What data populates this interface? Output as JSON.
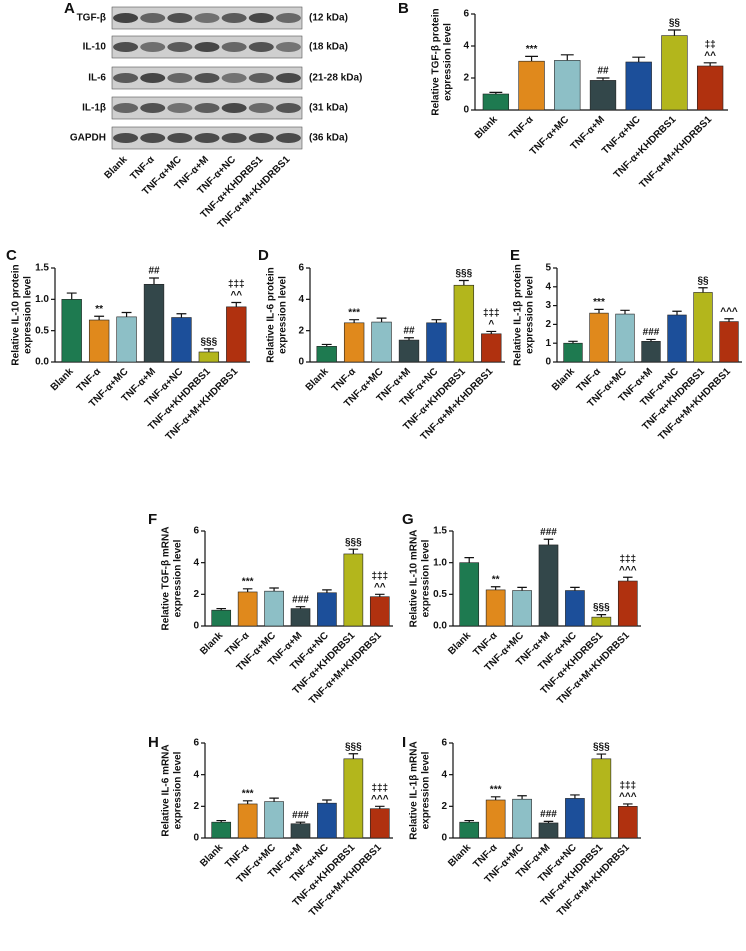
{
  "blot": {
    "panel_label": "A",
    "proteins": [
      {
        "name": "TGF-β",
        "size": "(12 kDa)"
      },
      {
        "name": "IL-10",
        "size": "(18 kDa)"
      },
      {
        "name": "IL-6",
        "size": "(21-28 kDa)"
      },
      {
        "name": "IL-1β",
        "size": "(31 kDa)"
      },
      {
        "name": "GAPDH",
        "size": "(36 kDa)"
      }
    ],
    "lanes": [
      "Blank",
      "TNF-α",
      "TNF-α+MC",
      "TNF-α+M",
      "TNF-α+NC",
      "TNF-α+KHDRBS1",
      "TNF-α+M+KHDRBS1"
    ]
  },
  "chart_data": [
    {
      "type": "bar",
      "panel_label": "B",
      "ylabel": [
        "Relative TGF-β protein",
        "expression level"
      ],
      "categories": [
        "Blank",
        "TNF-α",
        "TNF-α+MC",
        "TNF-α+M",
        "TNF-α+NC",
        "TNF-α+KHDRBS1",
        "TNF-α+M+KHDRBS1"
      ],
      "colors": [
        "#1e7a50",
        "#e0891c",
        "#8dbfc6",
        "#33474a",
        "#1c4f9a",
        "#b3b61c",
        "#b0310f"
      ],
      "values": [
        1.0,
        3.05,
        3.1,
        1.85,
        3.0,
        4.65,
        2.75
      ],
      "errors": [
        0.1,
        0.3,
        0.35,
        0.15,
        0.3,
        0.35,
        0.2
      ],
      "annotations": [
        null,
        [
          "***"
        ],
        null,
        [
          "##"
        ],
        null,
        [
          "§§"
        ],
        [
          "‡‡",
          "^^"
        ]
      ],
      "ylim": [
        0,
        6
      ],
      "yticks": [
        0,
        2,
        4,
        6
      ]
    },
    {
      "type": "bar",
      "panel_label": "C",
      "ylabel": [
        "Relative IL-10 protein",
        "expression level"
      ],
      "categories": [
        "Blank",
        "TNF-α",
        "TNF-α+MC",
        "TNF-α+M",
        "TNF-α+NC",
        "TNF-α+KHDRBS1",
        "TNF-α+M+KHDRBS1"
      ],
      "colors": [
        "#1e7a50",
        "#e0891c",
        "#8dbfc6",
        "#33474a",
        "#1c4f9a",
        "#b3b61c",
        "#b0310f"
      ],
      "values": [
        1.0,
        0.67,
        0.72,
        1.24,
        0.71,
        0.16,
        0.88
      ],
      "errors": [
        0.1,
        0.06,
        0.07,
        0.1,
        0.06,
        0.05,
        0.07
      ],
      "annotations": [
        null,
        [
          "**"
        ],
        null,
        [
          "##"
        ],
        null,
        [
          "§§§"
        ],
        [
          "‡‡‡",
          "^^"
        ]
      ],
      "ylim": [
        0,
        1.5
      ],
      "yticks": [
        {
          "value": 0,
          "label": "0.0"
        },
        0.5,
        {
          "value": 1,
          "label": "1.0"
        },
        1.5
      ]
    },
    {
      "type": "bar",
      "panel_label": "D",
      "ylabel": [
        "Relative IL-6 protein",
        "expression level"
      ],
      "categories": [
        "Blank",
        "TNF-α",
        "TNF-α+MC",
        "TNF-α+M",
        "TNF-α+NC",
        "TNF-α+KHDRBS1",
        "TNF-α+M+KHDRBS1"
      ],
      "colors": [
        "#1e7a50",
        "#e0891c",
        "#8dbfc6",
        "#33474a",
        "#1c4f9a",
        "#b3b61c",
        "#b0310f"
      ],
      "values": [
        1.0,
        2.5,
        2.55,
        1.4,
        2.5,
        4.9,
        1.8
      ],
      "errors": [
        0.12,
        0.2,
        0.25,
        0.15,
        0.2,
        0.3,
        0.15
      ],
      "annotations": [
        null,
        [
          "***"
        ],
        null,
        [
          "##"
        ],
        null,
        [
          "§§§"
        ],
        [
          "‡‡‡",
          "^"
        ]
      ],
      "ylim": [
        0,
        6
      ],
      "yticks": [
        0,
        2,
        4,
        6
      ]
    },
    {
      "type": "bar",
      "panel_label": "E",
      "ylabel": [
        "Relative IL-1β protein",
        "expression level"
      ],
      "categories": [
        "Blank",
        "TNF-α",
        "TNF-α+MC",
        "TNF-α+M",
        "TNF-α+NC",
        "TNF-α+KHDRBS1",
        "TNF-α+M+KHDRBS1"
      ],
      "colors": [
        "#1e7a50",
        "#e0891c",
        "#8dbfc6",
        "#33474a",
        "#1c4f9a",
        "#b3b61c",
        "#b0310f"
      ],
      "values": [
        1.0,
        2.6,
        2.55,
        1.1,
        2.5,
        3.7,
        2.15
      ],
      "errors": [
        0.1,
        0.2,
        0.2,
        0.1,
        0.2,
        0.25,
        0.15
      ],
      "annotations": [
        null,
        [
          "***"
        ],
        null,
        [
          "###"
        ],
        null,
        [
          "§§"
        ],
        [
          "^^^"
        ]
      ],
      "ylim": [
        0,
        5
      ],
      "yticks": [
        0,
        1,
        2,
        3,
        4,
        5
      ]
    },
    {
      "type": "bar",
      "panel_label": "F",
      "ylabel": [
        "Relative TGF-β mRNA",
        "expression level"
      ],
      "categories": [
        "Blank",
        "TNF-α",
        "TNF-α+MC",
        "TNF-α+M",
        "TNF-α+NC",
        "TNF-α+KHDRBS1",
        "TNF-α+M+KHDRBS1"
      ],
      "colors": [
        "#1e7a50",
        "#e0891c",
        "#8dbfc6",
        "#33474a",
        "#1c4f9a",
        "#b3b61c",
        "#b0310f"
      ],
      "values": [
        1.0,
        2.15,
        2.2,
        1.1,
        2.1,
        4.55,
        1.85
      ],
      "errors": [
        0.1,
        0.2,
        0.2,
        0.12,
        0.18,
        0.3,
        0.15
      ],
      "annotations": [
        null,
        [
          "***"
        ],
        null,
        [
          "###"
        ],
        null,
        [
          "§§§"
        ],
        [
          "‡‡‡",
          "^^"
        ]
      ],
      "ylim": [
        0,
        6
      ],
      "yticks": [
        0,
        2,
        4,
        6
      ]
    },
    {
      "type": "bar",
      "panel_label": "G",
      "ylabel": [
        "Relative IL-10 mRNA",
        "expression level"
      ],
      "categories": [
        "Blank",
        "TNF-α",
        "TNF-α+MC",
        "TNF-α+M",
        "TNF-α+NC",
        "TNF-α+KHDRBS1",
        "TNF-α+M+KHDRBS1"
      ],
      "colors": [
        "#1e7a50",
        "#e0891c",
        "#8dbfc6",
        "#33474a",
        "#1c4f9a",
        "#b3b61c",
        "#b0310f"
      ],
      "values": [
        1.0,
        0.57,
        0.56,
        1.28,
        0.56,
        0.14,
        0.71
      ],
      "errors": [
        0.08,
        0.05,
        0.05,
        0.09,
        0.05,
        0.04,
        0.06
      ],
      "annotations": [
        null,
        [
          "**"
        ],
        null,
        [
          "###"
        ],
        null,
        [
          "§§§"
        ],
        [
          "‡‡‡",
          "^^^"
        ]
      ],
      "ylim": [
        0,
        1.5
      ],
      "yticks": [
        {
          "value": 0,
          "label": "0.0"
        },
        0.5,
        {
          "value": 1,
          "label": "1.0"
        },
        1.5
      ]
    },
    {
      "type": "bar",
      "panel_label": "H",
      "ylabel": [
        "Relative IL-6 mRNA",
        "expression level"
      ],
      "categories": [
        "Blank",
        "TNF-α",
        "TNF-α+MC",
        "TNF-α+M",
        "TNF-α+NC",
        "TNF-α+KHDRBS1",
        "TNF-α+M+KHDRBS1"
      ],
      "colors": [
        "#1e7a50",
        "#e0891c",
        "#8dbfc6",
        "#33474a",
        "#1c4f9a",
        "#b3b61c",
        "#b0310f"
      ],
      "values": [
        1.0,
        2.15,
        2.3,
        0.9,
        2.2,
        5.0,
        1.85
      ],
      "errors": [
        0.1,
        0.2,
        0.22,
        0.1,
        0.2,
        0.32,
        0.15
      ],
      "annotations": [
        null,
        [
          "***"
        ],
        null,
        [
          "###"
        ],
        null,
        [
          "§§§"
        ],
        [
          "‡‡‡",
          "^^^"
        ]
      ],
      "ylim": [
        0,
        6
      ],
      "yticks": [
        0,
        2,
        4,
        6
      ]
    },
    {
      "type": "bar",
      "panel_label": "I",
      "ylabel": [
        "Relative IL-1β mRNA",
        "expression level"
      ],
      "categories": [
        "Blank",
        "TNF-α",
        "TNF-α+MC",
        "TNF-α+M",
        "TNF-α+NC",
        "TNF-α+KHDRBS1",
        "TNF-α+M+KHDRBS1"
      ],
      "colors": [
        "#1e7a50",
        "#e0891c",
        "#8dbfc6",
        "#33474a",
        "#1c4f9a",
        "#b3b61c",
        "#b0310f"
      ],
      "values": [
        1.0,
        2.4,
        2.45,
        0.95,
        2.5,
        5.0,
        2.0
      ],
      "errors": [
        0.1,
        0.2,
        0.22,
        0.1,
        0.22,
        0.3,
        0.15
      ],
      "annotations": [
        null,
        [
          "***"
        ],
        null,
        [
          "###"
        ],
        null,
        [
          "§§§"
        ],
        [
          "‡‡‡",
          "^^^"
        ]
      ],
      "ylim": [
        0,
        6
      ],
      "yticks": [
        0,
        2,
        4,
        6
      ]
    }
  ]
}
